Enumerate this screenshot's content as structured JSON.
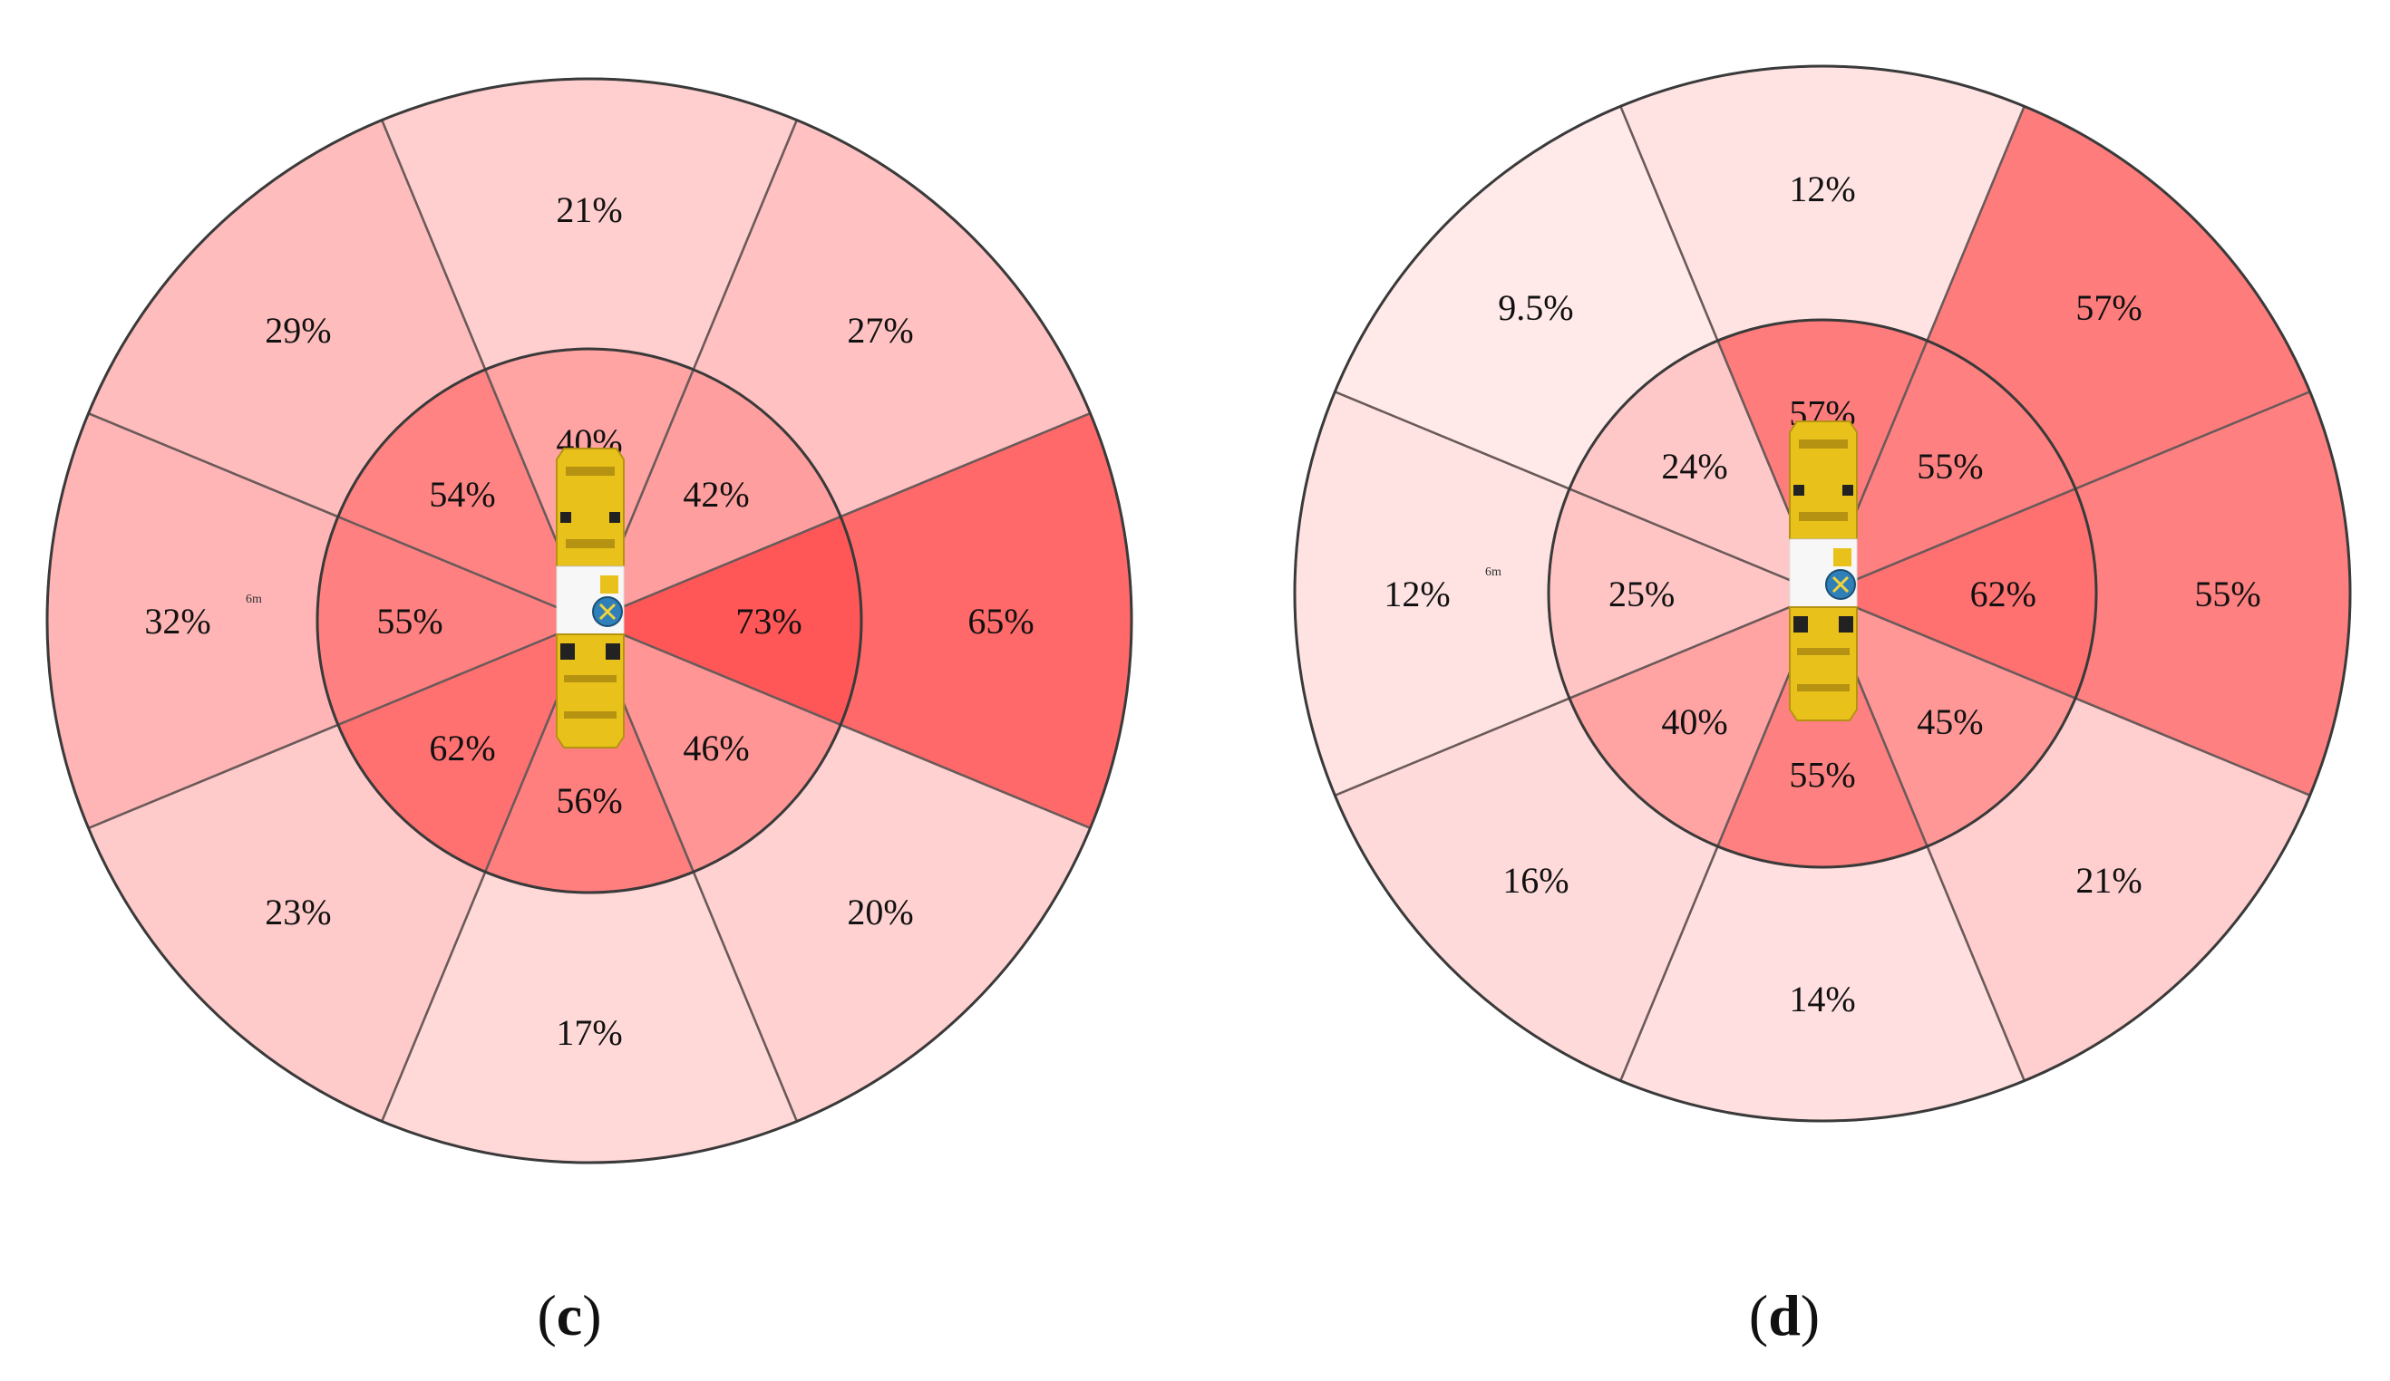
{
  "chart_data": [
    {
      "type": "polar-sector",
      "panel": "c",
      "rings": [
        "inner",
        "outer"
      ],
      "directions": [
        "N",
        "NE",
        "E",
        "SE",
        "S",
        "SW",
        "W",
        "NW"
      ],
      "inner": [
        {
          "direction": "N",
          "label": "40%",
          "value": 40
        },
        {
          "direction": "NE",
          "label": "42%",
          "value": 42
        },
        {
          "direction": "E",
          "label": "73%",
          "value": 73
        },
        {
          "direction": "SE",
          "label": "46%",
          "value": 46
        },
        {
          "direction": "S",
          "label": "56%",
          "value": 56
        },
        {
          "direction": "SW",
          "label": "62%",
          "value": 62
        },
        {
          "direction": "W",
          "label": "55%",
          "value": 55
        },
        {
          "direction": "NW",
          "label": "54%",
          "value": 54
        }
      ],
      "outer": [
        {
          "direction": "N",
          "label": "21%",
          "value": 21
        },
        {
          "direction": "NE",
          "label": "27%",
          "value": 27
        },
        {
          "direction": "E",
          "label": "65%",
          "value": 65
        },
        {
          "direction": "SE",
          "label": "20%",
          "value": 20
        },
        {
          "direction": "S",
          "label": "17%",
          "value": 17
        },
        {
          "direction": "SW",
          "label": "23%",
          "value": 23
        },
        {
          "direction": "W",
          "label": "32%",
          "value": 32
        },
        {
          "direction": "NW",
          "label": "29%",
          "value": 29
        }
      ],
      "distance_label": "6m"
    },
    {
      "type": "polar-sector",
      "panel": "d",
      "rings": [
        "inner",
        "outer"
      ],
      "directions": [
        "N",
        "NE",
        "E",
        "SE",
        "S",
        "SW",
        "W",
        "NW"
      ],
      "inner": [
        {
          "direction": "N",
          "label": "57%",
          "value": 57
        },
        {
          "direction": "NE",
          "label": "55%",
          "value": 55
        },
        {
          "direction": "E",
          "label": "62%",
          "value": 62
        },
        {
          "direction": "SE",
          "label": "45%",
          "value": 45
        },
        {
          "direction": "S",
          "label": "55%",
          "value": 55
        },
        {
          "direction": "SW",
          "label": "40%",
          "value": 40
        },
        {
          "direction": "W",
          "label": "25%",
          "value": 25
        },
        {
          "direction": "NW",
          "label": "24%",
          "value": 24
        }
      ],
      "outer": [
        {
          "direction": "N",
          "label": "12%",
          "value": 12
        },
        {
          "direction": "NE",
          "label": "57%",
          "value": 57
        },
        {
          "direction": "E",
          "label": "55%",
          "value": 55
        },
        {
          "direction": "SE",
          "label": "21%",
          "value": 21
        },
        {
          "direction": "S",
          "label": "14%",
          "value": 14
        },
        {
          "direction": "SW",
          "label": "16%",
          "value": 16
        },
        {
          "direction": "W",
          "label": "12%",
          "value": 12
        },
        {
          "direction": "NW",
          "label": "9.5%",
          "value": 9.5
        }
      ],
      "distance_label": "6m"
    }
  ],
  "captions": {
    "c": {
      "open": "(",
      "letter": "c",
      "close": ")"
    },
    "d": {
      "open": "(",
      "letter": "d",
      "close": ")"
    }
  },
  "colors": {
    "low": "#ffeaea",
    "high": "#ff5757",
    "border": "#3a3a3a",
    "vehicle": "#e8c21a",
    "vehicle_dark": "#b59212",
    "marker": "#2f7fb8"
  },
  "icons": [
    "excavator-icon",
    "crosshair-marker-icon"
  ]
}
